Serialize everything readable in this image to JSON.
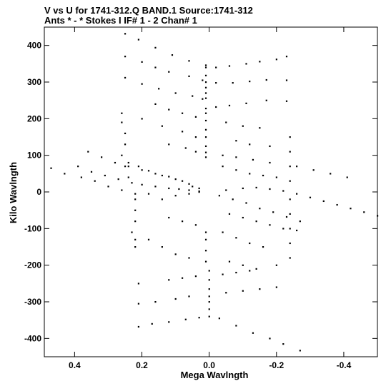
{
  "header": {
    "line1": "V vs U for 1741-312.Q BAND.1   Source:1741-312",
    "line2": "Ants * - *     Stokes I  IF# 1 - 2  Chan# 1"
  },
  "chart_data": {
    "type": "scatter",
    "title": "V vs U for 1741-312.Q BAND.1   Source:1741-312",
    "subtitle": "Ants * - *     Stokes I  IF# 1 - 2  Chan# 1",
    "xlabel": "Mega Wavlngth",
    "ylabel": "Kilo Wavlngth",
    "xlim": [
      0.49,
      -0.5
    ],
    "ylim": [
      -450,
      450
    ],
    "x_reversed": true,
    "xticks": [
      0.4,
      0.2,
      0.0,
      -0.2,
      -0.4
    ],
    "xtick_labels": [
      "0.4",
      "0.2",
      "0.0",
      "-0.2",
      "-0.4"
    ],
    "yticks": [
      400,
      300,
      200,
      100,
      0,
      -100,
      -200,
      -300,
      -400
    ],
    "ytick_labels": [
      "400",
      "300",
      "200",
      "100",
      "0",
      "-100",
      "-200",
      "-300",
      "-400"
    ],
    "marker_color": "#000000",
    "points": [
      [
        0.25,
        432
      ],
      [
        0.21,
        416
      ],
      [
        0.16,
        394
      ],
      [
        0.11,
        374
      ],
      [
        0.06,
        358
      ],
      [
        0.01,
        346
      ],
      [
        -0.02,
        340
      ],
      [
        -0.06,
        344
      ],
      [
        -0.11,
        350
      ],
      [
        -0.15,
        356
      ],
      [
        -0.2,
        362
      ],
      [
        0.25,
        370
      ],
      [
        0.2,
        355
      ],
      [
        0.16,
        340
      ],
      [
        0.12,
        328
      ],
      [
        0.06,
        316
      ],
      [
        0.02,
        305
      ],
      [
        -0.02,
        298
      ],
      [
        -0.07,
        298
      ],
      [
        -0.12,
        302
      ],
      [
        -0.17,
        306
      ],
      [
        0.25,
        312
      ],
      [
        0.2,
        295
      ],
      [
        0.15,
        282
      ],
      [
        0.1,
        270
      ],
      [
        0.05,
        262
      ],
      [
        0.02,
        254
      ],
      [
        -0.02,
        232
      ],
      [
        -0.06,
        236
      ],
      [
        -0.11,
        242
      ],
      [
        -0.17,
        250
      ],
      [
        -0.23,
        248
      ],
      [
        0.01,
        340
      ],
      [
        0.01,
        318
      ],
      [
        0.01,
        300
      ],
      [
        0.01,
        285
      ],
      [
        0.01,
        270
      ],
      [
        0.01,
        256
      ],
      [
        0.01,
        228
      ],
      [
        0.01,
        215
      ],
      [
        0.01,
        195
      ],
      [
        0.01,
        170
      ],
      [
        0.01,
        150
      ],
      [
        0.01,
        125
      ],
      [
        0.01,
        108
      ],
      [
        0.01,
        95
      ],
      [
        0.01,
        -110
      ],
      [
        0.01,
        -130
      ],
      [
        0.01,
        -160
      ],
      [
        0.01,
        -190
      ],
      [
        0.0,
        -215
      ],
      [
        0.0,
        -240
      ],
      [
        0.0,
        -265
      ],
      [
        0.0,
        -285
      ],
      [
        0.0,
        -300
      ],
      [
        0.0,
        -320
      ],
      [
        0.0,
        -340
      ],
      [
        -0.23,
        370
      ],
      [
        -0.23,
        305
      ],
      [
        -0.24,
        150
      ],
      [
        -0.24,
        110
      ],
      [
        -0.24,
        70
      ],
      [
        -0.24,
        30
      ],
      [
        -0.24,
        -20
      ],
      [
        -0.24,
        -60
      ],
      [
        -0.24,
        -100
      ],
      [
        -0.24,
        -140
      ],
      [
        -0.24,
        -180
      ],
      [
        0.26,
        215
      ],
      [
        0.26,
        190
      ],
      [
        0.25,
        160
      ],
      [
        0.25,
        130
      ],
      [
        0.26,
        100
      ],
      [
        0.25,
        70
      ],
      [
        0.24,
        40
      ],
      [
        0.22,
        -20
      ],
      [
        0.22,
        -50
      ],
      [
        0.22,
        -80
      ],
      [
        0.23,
        -110
      ],
      [
        0.22,
        -130
      ],
      [
        0.22,
        -150
      ],
      [
        0.47,
        65
      ],
      [
        0.43,
        50
      ],
      [
        0.39,
        70
      ],
      [
        0.35,
        55
      ],
      [
        0.31,
        45
      ],
      [
        0.27,
        35
      ],
      [
        0.23,
        25
      ],
      [
        0.38,
        40
      ],
      [
        0.34,
        30
      ],
      [
        0.3,
        15
      ],
      [
        0.26,
        5
      ],
      [
        0.22,
        -5
      ],
      [
        0.18,
        -5
      ],
      [
        0.36,
        110
      ],
      [
        0.32,
        95
      ],
      [
        0.28,
        80
      ],
      [
        0.24,
        70
      ],
      [
        0.2,
        60
      ],
      [
        0.16,
        50
      ],
      [
        0.12,
        42
      ],
      [
        0.08,
        30
      ],
      [
        0.05,
        15
      ],
      [
        0.24,
        80
      ],
      [
        0.21,
        70
      ],
      [
        0.18,
        58
      ],
      [
        0.14,
        45
      ],
      [
        0.1,
        35
      ],
      [
        0.06,
        22
      ],
      [
        0.03,
        10
      ],
      [
        0.2,
        20
      ],
      [
        0.16,
        15
      ],
      [
        0.12,
        10
      ],
      [
        0.09,
        8
      ],
      [
        0.06,
        5
      ],
      [
        0.03,
        2
      ],
      [
        0.14,
        -20
      ],
      [
        0.1,
        -10
      ],
      [
        0.06,
        -5
      ],
      [
        0.03,
        0
      ],
      [
        -0.03,
        -10
      ],
      [
        -0.07,
        -20
      ],
      [
        -0.11,
        -30
      ],
      [
        -0.15,
        -45
      ],
      [
        -0.19,
        -55
      ],
      [
        -0.23,
        -68
      ],
      [
        -0.27,
        -80
      ],
      [
        -0.05,
        5
      ],
      [
        -0.1,
        10
      ],
      [
        -0.14,
        12
      ],
      [
        -0.18,
        8
      ],
      [
        -0.22,
        3
      ],
      [
        -0.26,
        -5
      ],
      [
        -0.3,
        -15
      ],
      [
        -0.34,
        -25
      ],
      [
        -0.38,
        -35
      ],
      [
        -0.42,
        -45
      ],
      [
        -0.46,
        -55
      ],
      [
        -0.5,
        -65
      ],
      [
        -0.26,
        70
      ],
      [
        -0.31,
        60
      ],
      [
        -0.36,
        50
      ],
      [
        -0.41,
        40
      ],
      [
        -0.06,
        -60
      ],
      [
        -0.1,
        -70
      ],
      [
        -0.14,
        -80
      ],
      [
        -0.18,
        -90
      ],
      [
        -0.22,
        -100
      ],
      [
        -0.26,
        -105
      ],
      [
        0.16,
        240
      ],
      [
        0.12,
        225
      ],
      [
        0.08,
        215
      ],
      [
        0.04,
        205
      ],
      [
        -0.05,
        190
      ],
      [
        -0.1,
        180
      ],
      [
        -0.15,
        175
      ],
      [
        0.2,
        200
      ],
      [
        0.14,
        180
      ],
      [
        0.08,
        165
      ],
      [
        0.04,
        150
      ],
      [
        -0.08,
        140
      ],
      [
        -0.12,
        130
      ],
      [
        -0.18,
        125
      ],
      [
        0.12,
        130
      ],
      [
        0.07,
        120
      ],
      [
        0.04,
        110
      ],
      [
        -0.04,
        100
      ],
      [
        -0.08,
        95
      ],
      [
        -0.13,
        88
      ],
      [
        -0.18,
        80
      ],
      [
        -0.04,
        70
      ],
      [
        -0.08,
        60
      ],
      [
        -0.12,
        50
      ],
      [
        -0.16,
        45
      ],
      [
        -0.2,
        40
      ],
      [
        0.12,
        -240
      ],
      [
        0.08,
        -235
      ],
      [
        0.04,
        -230
      ],
      [
        -0.04,
        -225
      ],
      [
        -0.08,
        -220
      ],
      [
        -0.12,
        -215
      ],
      [
        0.16,
        -300
      ],
      [
        0.1,
        -292
      ],
      [
        0.06,
        -285
      ],
      [
        -0.05,
        -275
      ],
      [
        -0.1,
        -270
      ],
      [
        -0.15,
        -265
      ],
      [
        -0.2,
        -260
      ],
      [
        0.17,
        -360
      ],
      [
        0.12,
        -355
      ],
      [
        0.07,
        -348
      ],
      [
        0.03,
        -343
      ],
      [
        -0.03,
        -345
      ],
      [
        -0.08,
        -365
      ],
      [
        -0.13,
        -385
      ],
      [
        -0.18,
        -400
      ],
      [
        -0.22,
        -415
      ],
      [
        -0.27,
        -433
      ],
      [
        0.21,
        -250
      ],
      [
        0.21,
        -305
      ],
      [
        0.21,
        -368
      ],
      [
        0.18,
        -130
      ],
      [
        0.14,
        -150
      ],
      [
        0.1,
        -170
      ],
      [
        0.06,
        -180
      ],
      [
        -0.06,
        -190
      ],
      [
        -0.1,
        -200
      ],
      [
        -0.14,
        -210
      ],
      [
        -0.2,
        -200
      ],
      [
        0.12,
        -70
      ],
      [
        0.08,
        -80
      ],
      [
        0.04,
        -90
      ],
      [
        -0.04,
        -110
      ],
      [
        -0.08,
        -125
      ],
      [
        -0.12,
        -140
      ],
      [
        -0.16,
        -150
      ]
    ]
  }
}
